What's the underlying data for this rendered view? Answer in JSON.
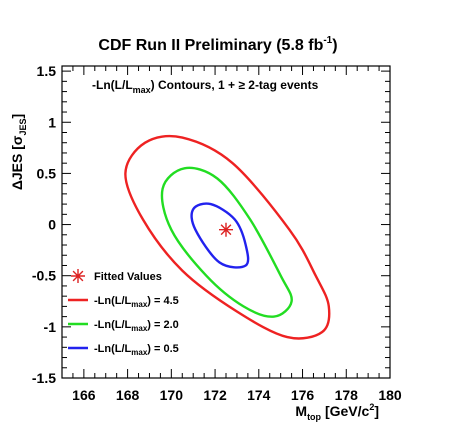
{
  "chart_data": {
    "type": "scatter",
    "title": "CDF Run II Preliminary (5.8 fb",
    "title_sup": "-1",
    "title_end": ")",
    "annotation": {
      "pre": "-Ln(L/L",
      "sub": "max",
      "post": ") Contours,  1 + ≥ 2-tag events"
    },
    "xlabel": {
      "main": "M",
      "sub": "top",
      "rest": " [GeV/c",
      "sup": "2",
      "end": "]"
    },
    "ylabel": {
      "main": "ΔJES [σ",
      "sub": "JES",
      "end": "]"
    },
    "xlim": [
      165,
      180
    ],
    "ylim": [
      -1.5,
      1.55
    ],
    "x_ticks": [
      166,
      168,
      170,
      172,
      174,
      176,
      178,
      180
    ],
    "y_ticks": [
      -1.5,
      -1,
      -0.5,
      0,
      0.5,
      1,
      1.5
    ],
    "y_tick_labels": [
      "-1.5",
      "-1",
      "-0.5",
      "0",
      "0.5",
      "1",
      "1.5"
    ],
    "fitted_value": {
      "x": 172.5,
      "y": -0.05,
      "color": "#dd2222",
      "label": "Fitted Values"
    },
    "contours": [
      {
        "level": "4.5",
        "color": "#ee2222",
        "label": {
          "pre": "-Ln(L/L",
          "sub": "max",
          "post": ") = 4.5"
        },
        "points": [
          [
            176.6,
            -0.5
          ],
          [
            177.2,
            -0.8
          ],
          [
            176.9,
            -1.05
          ],
          [
            175.3,
            -1.1
          ],
          [
            173.0,
            -0.85
          ],
          [
            170.5,
            -0.45
          ],
          [
            168.7,
            0.05
          ],
          [
            167.9,
            0.5
          ],
          [
            168.8,
            0.8
          ],
          [
            170.5,
            0.85
          ],
          [
            172.8,
            0.6
          ],
          [
            175.4,
            -0.05
          ]
        ]
      },
      {
        "level": "2.0",
        "color": "#22dd22",
        "label": {
          "pre": "-Ln(L/L",
          "sub": "max",
          "post": ") = 2.0"
        },
        "points": [
          [
            175.0,
            -0.5
          ],
          [
            175.5,
            -0.75
          ],
          [
            174.7,
            -0.9
          ],
          [
            173.3,
            -0.8
          ],
          [
            171.6,
            -0.5
          ],
          [
            170.0,
            -0.05
          ],
          [
            169.6,
            0.35
          ],
          [
            170.6,
            0.55
          ],
          [
            172.1,
            0.45
          ],
          [
            173.6,
            0.05
          ]
        ]
      },
      {
        "level": "0.5",
        "color": "#2222ee",
        "label": {
          "pre": "-Ln(L/L",
          "sub": "max",
          "post": ") = 0.5"
        },
        "points": [
          [
            173.4,
            -0.2
          ],
          [
            173.4,
            -0.4
          ],
          [
            172.2,
            -0.37
          ],
          [
            171.1,
            -0.05
          ],
          [
            171.0,
            0.15
          ],
          [
            171.8,
            0.2
          ],
          [
            172.9,
            0.05
          ]
        ]
      }
    ],
    "grid": false,
    "legend_position": "bottom-left"
  }
}
